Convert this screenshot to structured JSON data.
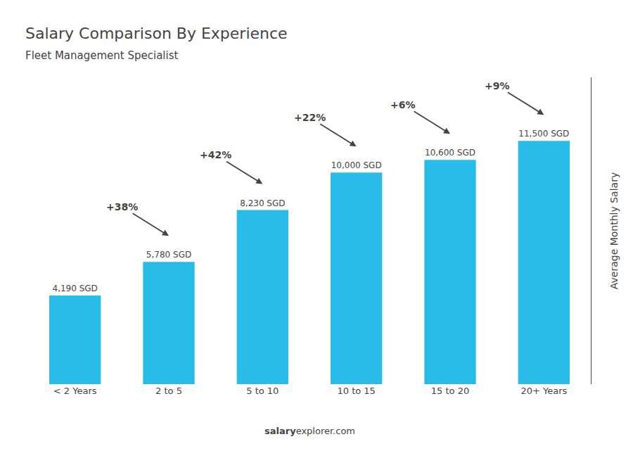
{
  "chart_data": {
    "type": "bar",
    "title": "Salary Comparison By Experience",
    "subtitle": "Fleet Management Specialist",
    "ylabel": "Average Monthly Salary",
    "categories": [
      "< 2 Years",
      "2 to 5",
      "5 to 10",
      "10 to 15",
      "15 to 20",
      "20+ Years"
    ],
    "values": [
      4190,
      5780,
      8230,
      10000,
      10600,
      11500
    ],
    "value_labels": [
      "4,190 SGD",
      "5,780 SGD",
      "8,230 SGD",
      "10,000 SGD",
      "10,600 SGD",
      "11,500 SGD"
    ],
    "data_labels": true,
    "color": "#29bce8",
    "ylim": [
      0,
      14500
    ],
    "yticks": [],
    "grid": false,
    "tick_labels": "x",
    "annotations": [
      {
        "text": "+38%",
        "from": "< 2 Years",
        "to": "2 to 5"
      },
      {
        "text": "+42%",
        "from": "2 to 5",
        "to": "5 to 10"
      },
      {
        "text": "+22%",
        "from": "5 to 10",
        "to": "10 to 15"
      },
      {
        "text": "+6%",
        "from": "10 to 15",
        "to": "15 to 20"
      },
      {
        "text": "+9%",
        "from": "15 to 20",
        "to": "20+ Years"
      }
    ],
    "footer": [
      "salary",
      "explorer.com"
    ]
  }
}
